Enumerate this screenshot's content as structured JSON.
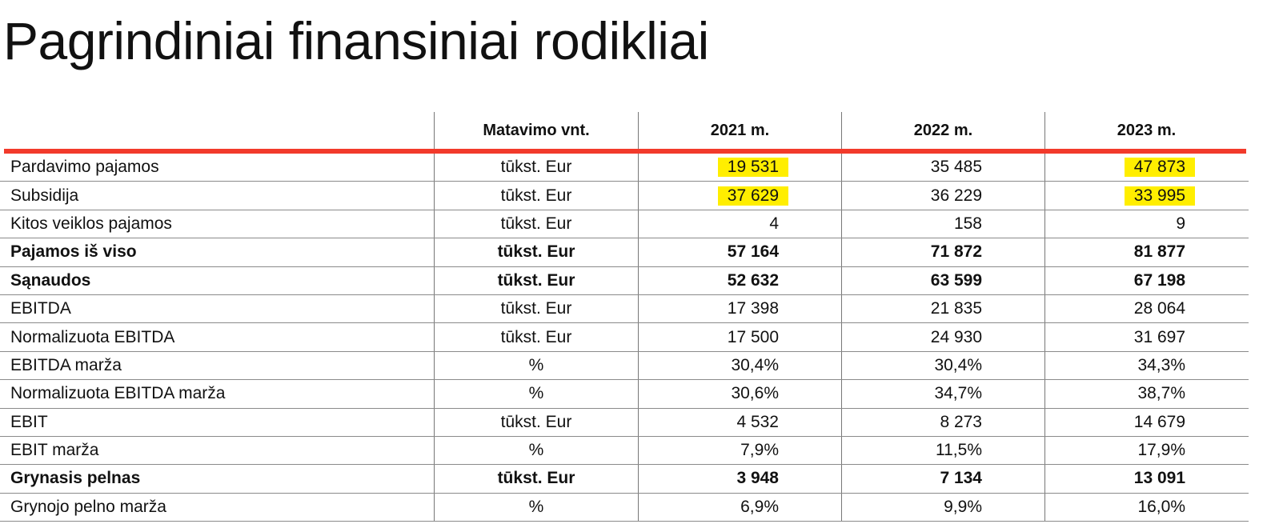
{
  "title": "Pagrindiniai finansiniai rodikliai",
  "header": {
    "label": "",
    "unit": "Matavimo vnt.",
    "years": [
      "2021 m.",
      "2022 m.",
      "2023 m."
    ]
  },
  "accent_color": "#f23a2b",
  "highlight_color": "#ffee00",
  "rows": [
    {
      "label": "Pardavimo pajamos",
      "unit": "tūkst. Eur",
      "values": [
        "19 531",
        "35 485",
        "47 873"
      ],
      "bold": false,
      "highlighted": [
        true,
        false,
        true
      ]
    },
    {
      "label": "Subsidija",
      "unit": "tūkst. Eur",
      "values": [
        "37 629",
        "36 229",
        "33 995"
      ],
      "bold": false,
      "highlighted": [
        true,
        false,
        true
      ]
    },
    {
      "label": "Kitos veiklos pajamos",
      "unit": "tūkst. Eur",
      "values": [
        "4",
        "158",
        "9"
      ],
      "bold": false
    },
    {
      "label": "Pajamos iš viso",
      "unit": "tūkst. Eur",
      "values": [
        "57 164",
        "71 872",
        "81 877"
      ],
      "bold": true
    },
    {
      "label": "Sąnaudos",
      "unit": "tūkst. Eur",
      "values": [
        "52 632",
        "63 599",
        "67 198"
      ],
      "bold": true
    },
    {
      "label": "EBITDA",
      "unit": "tūkst. Eur",
      "values": [
        "17 398",
        "21 835",
        "28 064"
      ],
      "bold": false
    },
    {
      "label": "Normalizuota EBITDA",
      "unit": "tūkst. Eur",
      "values": [
        "17 500",
        "24 930",
        "31 697"
      ],
      "bold": false
    },
    {
      "label": "EBITDA marža",
      "unit": "%",
      "values": [
        "30,4%",
        "30,4%",
        "34,3%"
      ],
      "bold": false
    },
    {
      "label": "Normalizuota EBITDA marža",
      "unit": "%",
      "values": [
        "30,6%",
        "34,7%",
        "38,7%"
      ],
      "bold": false
    },
    {
      "label": "EBIT",
      "unit": "tūkst. Eur",
      "values": [
        "4 532",
        "8 273",
        "14 679"
      ],
      "bold": false
    },
    {
      "label": "EBIT marža",
      "unit": "%",
      "values": [
        "7,9%",
        "11,5%",
        "17,9%"
      ],
      "bold": false
    },
    {
      "label": "Grynasis pelnas",
      "unit": "tūkst. Eur",
      "values": [
        "3 948",
        "7 134",
        "13 091"
      ],
      "bold": true
    },
    {
      "label": "Grynojo pelno marža",
      "unit": "%",
      "values": [
        "6,9%",
        "9,9%",
        "16,0%"
      ],
      "bold": false
    }
  ]
}
